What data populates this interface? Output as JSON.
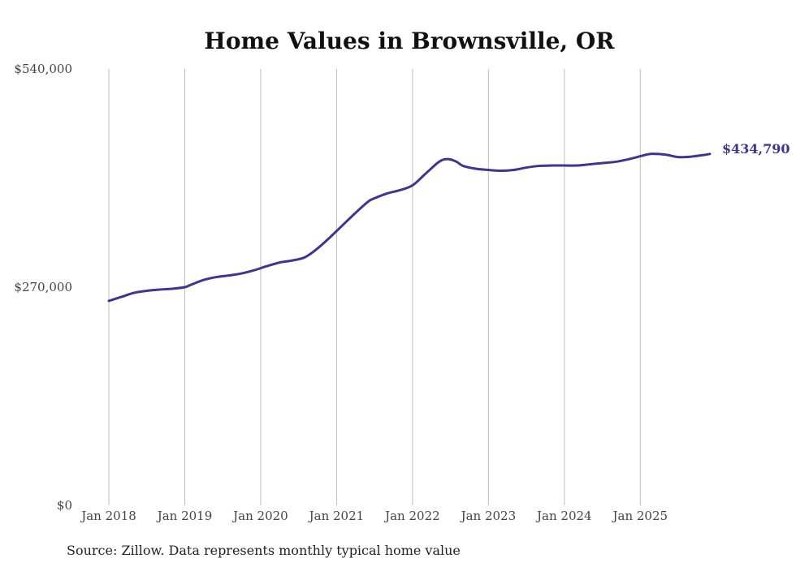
{
  "chart_data": {
    "type": "line",
    "title": "Home Values in Brownsville, OR",
    "xlabel": "",
    "ylabel": "",
    "ylim": [
      0,
      540000
    ],
    "xlim": [
      2018.0,
      2025.917
    ],
    "y_ticks": [
      {
        "value": 0,
        "label": "$0"
      },
      {
        "value": 270000,
        "label": "$270,000"
      },
      {
        "value": 540000,
        "label": "$540,000"
      }
    ],
    "x_ticks": [
      {
        "value": 2018,
        "label": "Jan 2018"
      },
      {
        "value": 2019,
        "label": "Jan 2019"
      },
      {
        "value": 2020,
        "label": "Jan 2020"
      },
      {
        "value": 2021,
        "label": "Jan 2021"
      },
      {
        "value": 2022,
        "label": "Jan 2022"
      },
      {
        "value": 2023,
        "label": "Jan 2023"
      },
      {
        "value": 2024,
        "label": "Jan 2024"
      },
      {
        "value": 2025,
        "label": "Jan 2025"
      }
    ],
    "grid": "vertical",
    "series": [
      {
        "name": "Typical home value",
        "color": "#3d3590",
        "x": [
          2018.0,
          2018.167,
          2018.333,
          2018.5,
          2018.667,
          2018.833,
          2019.0,
          2019.083,
          2019.25,
          2019.417,
          2019.583,
          2019.75,
          2019.917,
          2020.083,
          2020.25,
          2020.417,
          2020.583,
          2020.75,
          2020.917,
          2021.083,
          2021.25,
          2021.417,
          2021.5,
          2021.667,
          2021.833,
          2022.0,
          2022.167,
          2022.333,
          2022.417,
          2022.5,
          2022.583,
          2022.667,
          2022.833,
          2023.0,
          2023.167,
          2023.333,
          2023.5,
          2023.667,
          2023.833,
          2024.0,
          2024.167,
          2024.333,
          2024.5,
          2024.667,
          2024.833,
          2025.0,
          2025.083,
          2025.167,
          2025.333,
          2025.5,
          2025.667,
          2025.833,
          2025.917
        ],
        "values": [
          253000,
          258000,
          263000,
          265500,
          267000,
          268000,
          270000,
          273000,
          279000,
          282500,
          284500,
          287000,
          291000,
          296000,
          300500,
          303000,
          307000,
          318000,
          332000,
          347000,
          362000,
          376000,
          380000,
          386000,
          390000,
          396000,
          410000,
          424000,
          428000,
          428000,
          425000,
          420000,
          416500,
          415000,
          414000,
          415000,
          418000,
          420000,
          420500,
          420500,
          420500,
          422000,
          423500,
          425000,
          428000,
          432000,
          434000,
          435000,
          434000,
          431000,
          431500,
          433500,
          434790
        ]
      }
    ],
    "end_label": "$434,790",
    "source": "Source: Zillow. Data represents monthly typical home value"
  }
}
